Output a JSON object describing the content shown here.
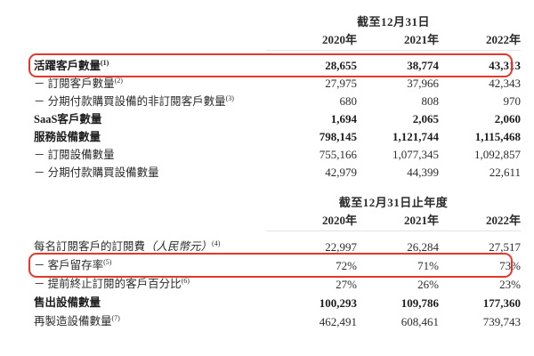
{
  "accent_color": "#e13a2c",
  "table1": {
    "period_header": "截至12月31日",
    "years": [
      "2020年",
      "2021年",
      "2022年"
    ],
    "rows": [
      {
        "label": "活躍客戶數量",
        "sup": "(1)",
        "values": [
          "28,655",
          "38,774",
          "43,313"
        ]
      },
      {
        "label": "－ 訂閱客戶數量",
        "sup": "(2)",
        "values": [
          "27,975",
          "37,966",
          "42,343"
        ]
      },
      {
        "label": "－ 分期付款購買設備的非訂閱客戶數量",
        "sup": "(3)",
        "values": [
          "680",
          "808",
          "970"
        ]
      },
      {
        "label": "SaaS客戶數量",
        "values": [
          "1,694",
          "2,065",
          "2,060"
        ]
      },
      {
        "label": "服務設備數量",
        "values": [
          "798,145",
          "1,121,744",
          "1,115,468"
        ]
      },
      {
        "label": "－ 訂閱設備數量",
        "values": [
          "755,166",
          "1,077,345",
          "1,092,857"
        ]
      },
      {
        "label": "－ 分期付款購買設備數量",
        "values": [
          "42,979",
          "44,399",
          "22,611"
        ]
      }
    ]
  },
  "table2": {
    "period_header": "截至12月31日止年度",
    "years": [
      "2020年",
      "2021年",
      "2022年"
    ],
    "rows": [
      {
        "label": "每名訂閱客戶的訂閱費",
        "label_italic": "（人民幣元）",
        "sup": "(4)",
        "values": [
          "22,997",
          "26,284",
          "27,517"
        ]
      },
      {
        "label": "－ 客戶留存率",
        "sup": "(5)",
        "values": [
          "72%",
          "71%",
          "73%"
        ]
      },
      {
        "label": "－ 提前終止訂閱的客戶百分比",
        "sup": "(6)",
        "values": [
          "27%",
          "26%",
          "23%"
        ]
      },
      {
        "label": "售出設備數量",
        "values": [
          "100,293",
          "109,786",
          "177,360"
        ]
      },
      {
        "label": "再製造設備數量",
        "sup": "(7)",
        "values": [
          "462,491",
          "608,461",
          "739,743"
        ]
      }
    ]
  }
}
